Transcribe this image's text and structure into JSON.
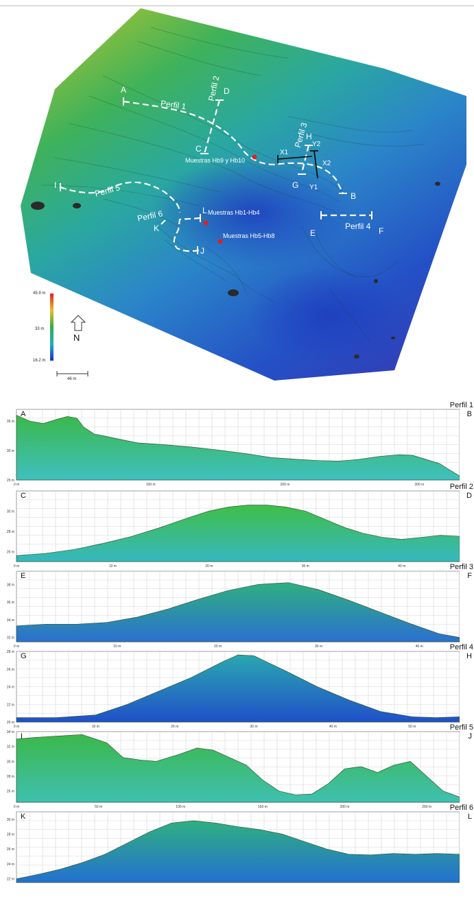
{
  "map": {
    "profile_labels": [
      "Perfil 1",
      "Perfil 2",
      "Perfil 3",
      "Perfil 4",
      "Perfil 5",
      "Perfil 6"
    ],
    "endpoint_letters": [
      "A",
      "B",
      "C",
      "D",
      "E",
      "F",
      "G",
      "H",
      "I",
      "J",
      "K",
      "L",
      "X1",
      "X2",
      "Y1",
      "Y2"
    ],
    "sample_labels": [
      "Muestras Hb9 y Hb10",
      "Muestras Hb1-Hb4",
      "Muestras Hb5-Hb8"
    ],
    "legend": {
      "max": "45.9 m",
      "mid": "33 m",
      "min": "16.2 m"
    },
    "north_label": "N",
    "scale_label": "46 m",
    "colors": {
      "path": "#ffffff",
      "sample": "#e02020",
      "high": "#2fa84a",
      "low": "#2350c8"
    }
  },
  "profiles": [
    {
      "title": "Perfil 1",
      "start": "A",
      "end": "B",
      "xunit": " m",
      "xticks": [
        0,
        100,
        200,
        300
      ],
      "xmax": 330,
      "ylim": [
        25,
        37
      ],
      "yticks": [
        25,
        30,
        35
      ],
      "x": [
        0,
        10,
        20,
        30,
        38,
        45,
        50,
        58,
        65,
        75,
        90,
        110,
        130,
        150,
        170,
        190,
        210,
        225,
        240,
        255,
        270,
        285,
        295,
        305,
        315,
        322,
        330
      ],
      "y": [
        36,
        35,
        34.6,
        35.3,
        35.8,
        35.5,
        34,
        32.8,
        32.5,
        32,
        31.3,
        31,
        30.6,
        30.1,
        29.5,
        28.8,
        28.5,
        28.3,
        28.2,
        28.5,
        29,
        29.3,
        29.2,
        28.5,
        27.8,
        26.8,
        25.7
      ]
    },
    {
      "title": "Perfil 2",
      "start": "C",
      "end": "D",
      "xunit": " m",
      "xticks": [
        0,
        10,
        20,
        30,
        40
      ],
      "xmax": 46,
      "ylim": [
        25,
        32
      ],
      "yticks": [
        26,
        28,
        30
      ],
      "x": [
        0,
        3,
        6,
        9,
        12,
        15,
        18,
        20,
        22,
        24,
        26,
        28,
        30,
        32,
        34,
        36,
        38,
        40,
        42,
        44,
        46
      ],
      "y": [
        25.6,
        25.8,
        26.2,
        26.8,
        27.5,
        28.4,
        29.4,
        30,
        30.4,
        30.6,
        30.6,
        30.4,
        30,
        29.2,
        28.4,
        27.8,
        27.4,
        27.2,
        27.4,
        27.6,
        27.5
      ]
    },
    {
      "title": "Perfil 3",
      "start": "E",
      "end": "F",
      "xunit": " m",
      "xticks": [
        0,
        10,
        20,
        30,
        40
      ],
      "xmax": 44,
      "ylim": [
        31.5,
        39.5
      ],
      "yticks": [
        32,
        34,
        36,
        38
      ],
      "x": [
        0,
        3,
        6,
        9,
        12,
        15,
        18,
        21,
        24,
        27,
        30,
        33,
        36,
        39,
        42,
        44
      ],
      "y": [
        33.3,
        33.5,
        33.5,
        33.7,
        34.3,
        35.2,
        36.3,
        37.3,
        38,
        38.2,
        37.4,
        36.2,
        34.9,
        33.6,
        32.4,
        32
      ]
    },
    {
      "title": "Perfil 4",
      "start": "G",
      "end": "H",
      "xunit": " m",
      "xticks": [
        0,
        10,
        20,
        30,
        40,
        50
      ],
      "xmax": 56,
      "ylim": [
        20,
        28
      ],
      "yticks": [
        20,
        22,
        24,
        26,
        28
      ],
      "x": [
        0,
        5,
        10,
        14,
        18,
        22,
        26,
        28,
        30,
        34,
        38,
        42,
        46,
        50,
        53,
        56
      ],
      "y": [
        20.5,
        20.5,
        20.8,
        22,
        23.5,
        25,
        26.8,
        27.6,
        27.5,
        25.8,
        24,
        22.5,
        21.2,
        20.6,
        20.5,
        20.6
      ]
    },
    {
      "title": "Perfil 5",
      "start": "I",
      "end": "J",
      "xunit": " m",
      "xticks": [
        0,
        50,
        100,
        150,
        200,
        250
      ],
      "xmax": 270,
      "ylim": [
        24.5,
        34
      ],
      "yticks": [
        26,
        28,
        30,
        32,
        34
      ],
      "x": [
        0,
        10,
        25,
        40,
        55,
        65,
        75,
        85,
        100,
        110,
        120,
        130,
        140,
        150,
        160,
        170,
        180,
        190,
        200,
        210,
        220,
        230,
        240,
        250,
        260,
        270
      ],
      "y": [
        33,
        33.2,
        33.4,
        33.6,
        32.5,
        30.5,
        30.2,
        30,
        31,
        31.8,
        31.5,
        30.5,
        29.5,
        27.5,
        26,
        25.5,
        25.6,
        27,
        29,
        29.3,
        28.5,
        29.5,
        30,
        28,
        26,
        25.2
      ]
    },
    {
      "title": "Perfil 6",
      "start": "K",
      "end": "L",
      "xunit": " m",
      "xticks": [],
      "xmax": 100,
      "ylim": [
        21.5,
        31
      ],
      "yticks": [
        22,
        24,
        26,
        28,
        30
      ],
      "x": [
        0,
        5,
        10,
        15,
        20,
        25,
        30,
        35,
        40,
        45,
        50,
        55,
        60,
        65,
        70,
        75,
        80,
        85,
        90,
        95,
        100
      ],
      "y": [
        22,
        22.6,
        23.3,
        24.2,
        25.3,
        26.8,
        28.3,
        29.5,
        29.8,
        29.5,
        29,
        28.6,
        28,
        27,
        26,
        25.3,
        25.2,
        25.4,
        25.3,
        25.4,
        25.3
      ]
    }
  ]
}
